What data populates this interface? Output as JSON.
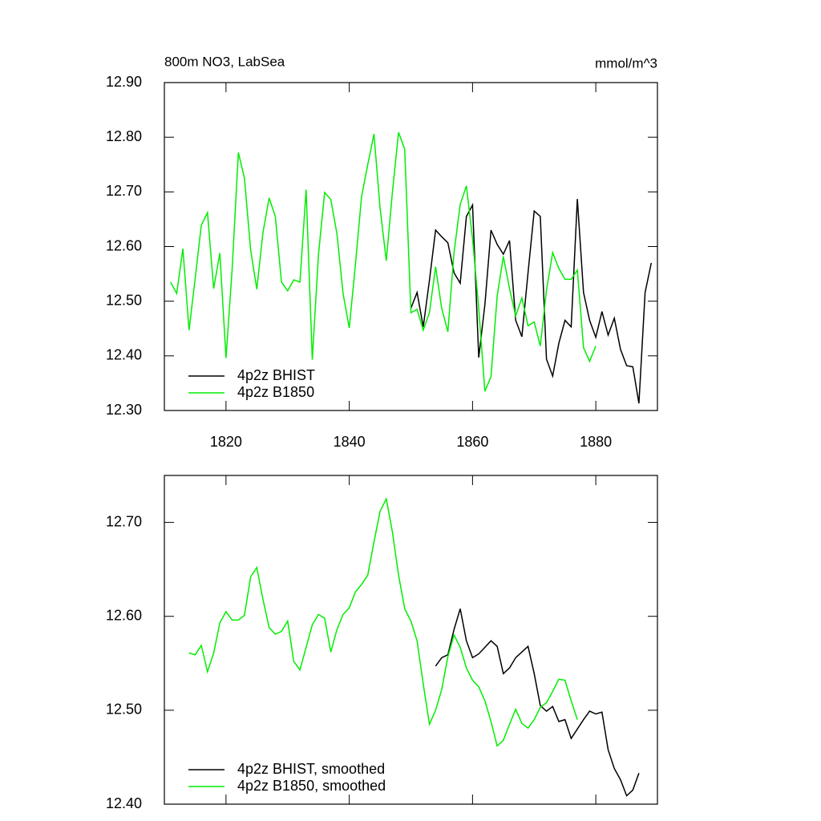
{
  "chart_data": [
    {
      "type": "line",
      "title": "800m NO3, LabSea",
      "units": "mmol/m^3",
      "xlim": [
        1810,
        1890
      ],
      "xticks": [
        1820,
        1840,
        1860,
        1880
      ],
      "ylim": [
        12.3,
        12.9
      ],
      "yticks": [
        {
          "value": 12.3,
          "label": "12.30"
        },
        {
          "value": 12.4,
          "label": "12.40"
        },
        {
          "value": 12.5,
          "label": "12.50"
        },
        {
          "value": 12.6,
          "label": "12.60"
        },
        {
          "value": 12.7,
          "label": "12.70"
        },
        {
          "value": 12.8,
          "label": "12.80"
        },
        {
          "value": 12.9,
          "label": "12.90"
        }
      ],
      "legend": "lower-left",
      "series": [
        {
          "name": "4p2z BHIST",
          "color": "#000000",
          "x": [
            1850,
            1851,
            1852,
            1853,
            1854,
            1855,
            1856,
            1857,
            1858,
            1859,
            1860,
            1861,
            1862,
            1863,
            1864,
            1865,
            1866,
            1867,
            1868,
            1869,
            1870,
            1871,
            1872,
            1873,
            1874,
            1875,
            1876,
            1877,
            1878,
            1879,
            1880,
            1881,
            1882,
            1883,
            1884,
            1885,
            1886,
            1887,
            1888,
            1889
          ],
          "values": [
            12.487,
            12.516,
            12.453,
            12.538,
            12.63,
            12.618,
            12.607,
            12.552,
            12.533,
            12.655,
            12.676,
            12.397,
            12.494,
            12.63,
            12.604,
            12.586,
            12.611,
            12.465,
            12.435,
            12.552,
            12.665,
            12.655,
            12.394,
            12.363,
            12.423,
            12.465,
            12.453,
            12.687,
            12.516,
            12.465,
            12.434,
            12.481,
            12.438,
            12.469,
            12.412,
            12.382,
            12.38,
            12.313,
            12.516,
            12.57
          ]
        },
        {
          "name": "4p2z B1850",
          "color": "#00ee00",
          "x": [
            1811,
            1812,
            1813,
            1814,
            1815,
            1816,
            1817,
            1818,
            1819,
            1820,
            1821,
            1822,
            1823,
            1824,
            1825,
            1826,
            1827,
            1828,
            1829,
            1830,
            1831,
            1832,
            1833,
            1834,
            1835,
            1836,
            1837,
            1838,
            1839,
            1840,
            1841,
            1842,
            1843,
            1844,
            1845,
            1846,
            1847,
            1848,
            1849,
            1850,
            1851,
            1852,
            1853,
            1854,
            1855,
            1856,
            1857,
            1858,
            1859,
            1860,
            1861,
            1862,
            1863,
            1864,
            1865,
            1866,
            1867,
            1868,
            1869,
            1870,
            1871,
            1872,
            1873,
            1874,
            1875,
            1876,
            1877,
            1878,
            1879,
            1880
          ],
          "values": [
            12.535,
            12.514,
            12.596,
            12.447,
            12.541,
            12.639,
            12.662,
            12.523,
            12.588,
            12.396,
            12.56,
            12.772,
            12.725,
            12.594,
            12.522,
            12.626,
            12.689,
            12.655,
            12.535,
            12.519,
            12.539,
            12.535,
            12.704,
            12.393,
            12.585,
            12.699,
            12.686,
            12.623,
            12.514,
            12.451,
            12.567,
            12.692,
            12.75,
            12.806,
            12.67,
            12.574,
            12.699,
            12.809,
            12.778,
            12.479,
            12.485,
            12.447,
            12.479,
            12.563,
            12.487,
            12.444,
            12.589,
            12.677,
            12.711,
            12.614,
            12.487,
            12.335,
            12.362,
            12.509,
            12.582,
            12.523,
            12.473,
            12.506,
            12.455,
            12.462,
            12.418,
            12.52,
            12.589,
            12.56,
            12.54,
            12.54,
            12.557,
            12.415,
            12.39,
            12.418
          ]
        }
      ]
    },
    {
      "type": "line",
      "xlim": [
        1810,
        1890
      ],
      "xticks": [
        1820,
        1840,
        1860,
        1880
      ],
      "xtick_labels": false,
      "ylim": [
        12.4,
        12.75
      ],
      "yticks": [
        {
          "value": 12.4,
          "label": "12.40"
        },
        {
          "value": 12.5,
          "label": "12.50"
        },
        {
          "value": 12.6,
          "label": "12.60"
        },
        {
          "value": 12.7,
          "label": "12.70"
        }
      ],
      "legend": "lower-left",
      "series": [
        {
          "name": "4p2z BHIST, smoothed",
          "color": "#000000",
          "x": [
            1854,
            1855,
            1856,
            1857,
            1858,
            1859,
            1860,
            1861,
            1862,
            1863,
            1864,
            1865,
            1866,
            1867,
            1868,
            1869,
            1870,
            1871,
            1872,
            1873,
            1874,
            1875,
            1876,
            1877,
            1878,
            1879,
            1880,
            1881,
            1882,
            1883,
            1884,
            1885,
            1886,
            1887
          ],
          "values": [
            12.547,
            12.556,
            12.559,
            12.586,
            12.608,
            12.574,
            12.556,
            12.56,
            12.567,
            12.574,
            12.568,
            12.539,
            12.545,
            12.556,
            12.562,
            12.568,
            12.539,
            12.505,
            12.499,
            12.504,
            12.488,
            12.49,
            12.47,
            12.48,
            12.49,
            12.499,
            12.496,
            12.498,
            12.458,
            12.438,
            12.426,
            12.409,
            12.415,
            12.433
          ]
        },
        {
          "name": "4p2z B1850, smoothed",
          "color": "#00ee00",
          "x": [
            1814,
            1815,
            1816,
            1817,
            1818,
            1819,
            1820,
            1821,
            1822,
            1823,
            1824,
            1825,
            1826,
            1827,
            1828,
            1829,
            1830,
            1831,
            1832,
            1833,
            1834,
            1835,
            1836,
            1837,
            1838,
            1839,
            1840,
            1841,
            1842,
            1843,
            1844,
            1845,
            1846,
            1847,
            1848,
            1849,
            1850,
            1851,
            1852,
            1853,
            1854,
            1855,
            1856,
            1857,
            1858,
            1859,
            1860,
            1861,
            1862,
            1863,
            1864,
            1865,
            1866,
            1867,
            1868,
            1869,
            1870,
            1871,
            1872,
            1873,
            1874,
            1875,
            1876,
            1877
          ],
          "values": [
            12.561,
            12.559,
            12.569,
            12.541,
            12.561,
            12.593,
            12.605,
            12.596,
            12.596,
            12.601,
            12.642,
            12.652,
            12.618,
            12.588,
            12.581,
            12.584,
            12.595,
            12.552,
            12.543,
            12.567,
            12.591,
            12.602,
            12.598,
            12.562,
            12.586,
            12.602,
            12.609,
            12.626,
            12.634,
            12.644,
            12.679,
            12.712,
            12.725,
            12.69,
            12.644,
            12.608,
            12.595,
            12.574,
            12.528,
            12.485,
            12.5,
            12.522,
            12.557,
            12.58,
            12.567,
            12.545,
            12.532,
            12.525,
            12.51,
            12.488,
            12.462,
            12.468,
            12.485,
            12.501,
            12.486,
            12.481,
            12.49,
            12.503,
            12.508,
            12.52,
            12.533,
            12.532,
            12.51,
            12.49
          ]
        }
      ]
    }
  ]
}
